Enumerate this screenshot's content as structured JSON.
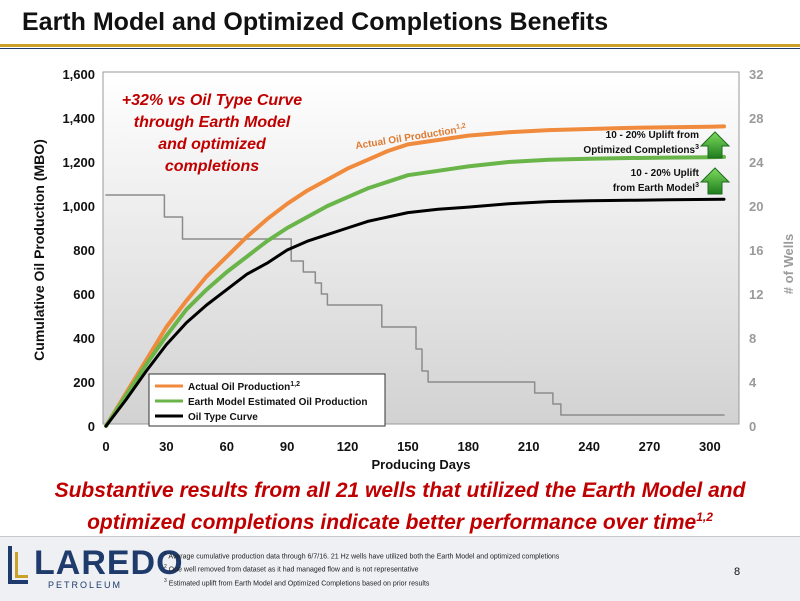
{
  "slide": {
    "title": "Earth Model and Optimized Completions Benefits",
    "page_number": "8",
    "conclusion_line1": "Substantive results from all 21 wells that utilized the Earth Model and",
    "conclusion_line2": "optimized completions indicate better performance over time",
    "conclusion_sup": "1,2",
    "footnotes": [
      {
        "sup": "1",
        "text": "Average cumulative production data through 6/7/16. 21 Hz wells have utilized both the Earth Model and optimized completions"
      },
      {
        "sup": "2",
        "text": "One well removed from dataset as it had managed flow and is not representative"
      },
      {
        "sup": "3",
        "text": "Estimated uplift from Earth Model and Optimized Completions based on prior results"
      }
    ],
    "logo_word": "LAREDO",
    "logo_sub": "PETROLEUM"
  },
  "colors": {
    "actual": "#f08a3c",
    "earth_model": "#6ab54a",
    "type_curve": "#000000",
    "wells": "#8c8c8c",
    "accent_red": "#c00000",
    "arrow_green": "#2e9e2e"
  },
  "chart_data": {
    "type": "line",
    "xlabel": "Producing Days",
    "ylabel": "Cumulative Oil Production (MBO)",
    "y2label": "# of Wells",
    "xlim": [
      0,
      310
    ],
    "ylim": [
      0,
      1600
    ],
    "y2lim": [
      0,
      32
    ],
    "x_ticks": [
      0,
      30,
      60,
      90,
      120,
      150,
      180,
      210,
      240,
      270,
      300
    ],
    "y_tick_labels": [
      "0",
      "200",
      "400",
      "600",
      "800",
      "1,000",
      "1,200",
      "1,400",
      "1,600"
    ],
    "y2_tick_labels": [
      "0",
      "4",
      "8",
      "12",
      "16",
      "20",
      "24",
      "28",
      "32"
    ],
    "legend": [
      {
        "label": "Actual Oil Production",
        "sup": "1,2",
        "color": "#f08a3c"
      },
      {
        "label": "Earth Model Estimated Oil Production",
        "sup": "",
        "color": "#6ab54a"
      },
      {
        "label": "Oil Type Curve",
        "sup": "",
        "color": "#000000"
      }
    ],
    "annotations": {
      "callout_lines": [
        "+32% vs Oil Type Curve",
        "through Earth Model",
        "and optimized",
        "completions"
      ],
      "actual_label": "Actual Oil Production",
      "actual_label_sup": "1,2",
      "uplift1_line1": "10 - 20% Uplift from",
      "uplift1_line2": "Optimized Completions",
      "uplift1_sup": "3",
      "uplift2_line1": "10 - 20% Uplift",
      "uplift2_line2": "from Earth Model",
      "uplift2_sup": "3"
    },
    "series": [
      {
        "name": "Actual Oil Production",
        "axis": "left",
        "x": [
          0,
          10,
          20,
          30,
          40,
          50,
          60,
          70,
          80,
          90,
          100,
          110,
          120,
          130,
          140,
          150,
          165,
          180,
          200,
          220,
          240,
          260,
          280,
          300,
          307
        ],
        "y": [
          0,
          150,
          300,
          450,
          570,
          680,
          770,
          860,
          940,
          1010,
          1070,
          1120,
          1170,
          1210,
          1250,
          1280,
          1300,
          1320,
          1335,
          1345,
          1350,
          1355,
          1358,
          1360,
          1362
        ]
      },
      {
        "name": "Earth Model Estimated Oil Production",
        "axis": "left",
        "x": [
          0,
          10,
          20,
          30,
          40,
          50,
          60,
          70,
          80,
          90,
          100,
          110,
          120,
          130,
          140,
          150,
          165,
          180,
          200,
          220,
          240,
          260,
          280,
          300,
          307
        ],
        "y": [
          0,
          140,
          280,
          410,
          530,
          620,
          700,
          770,
          840,
          900,
          950,
          1000,
          1040,
          1080,
          1110,
          1140,
          1160,
          1180,
          1200,
          1210,
          1215,
          1218,
          1220,
          1222,
          1223
        ]
      },
      {
        "name": "Oil Type Curve",
        "axis": "left",
        "x": [
          0,
          10,
          20,
          30,
          40,
          50,
          60,
          70,
          80,
          90,
          100,
          110,
          120,
          130,
          140,
          150,
          165,
          180,
          200,
          220,
          240,
          260,
          280,
          300,
          307
        ],
        "y": [
          0,
          120,
          250,
          370,
          470,
          550,
          620,
          690,
          740,
          800,
          840,
          870,
          900,
          930,
          950,
          970,
          985,
          995,
          1010,
          1020,
          1024,
          1026,
          1028,
          1030,
          1031
        ]
      },
      {
        "name": "# of Wells",
        "axis": "right",
        "x": [
          0,
          29,
          29,
          38,
          38,
          46,
          46,
          92,
          92,
          98,
          98,
          104,
          104,
          107,
          107,
          110,
          110,
          137,
          137,
          154,
          154,
          157,
          157,
          160,
          160,
          213,
          213,
          222,
          222,
          226,
          226,
          307
        ],
        "y": [
          21,
          21,
          19,
          19,
          17,
          17,
          17,
          17,
          15,
          15,
          14,
          14,
          13,
          13,
          12,
          12,
          11,
          11,
          9,
          9,
          7,
          7,
          5,
          5,
          4,
          4,
          3,
          3,
          2,
          2,
          1,
          1
        ]
      }
    ]
  }
}
